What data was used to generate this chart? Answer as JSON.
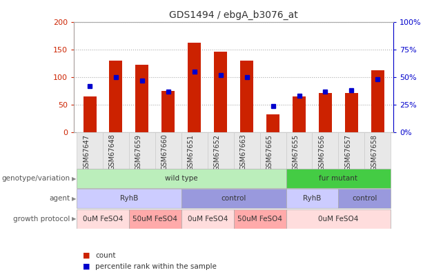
{
  "title": "GDS1494 / ebgA_b3076_at",
  "samples": [
    "GSM67647",
    "GSM67648",
    "GSM67659",
    "GSM67660",
    "GSM67651",
    "GSM67652",
    "GSM67663",
    "GSM67665",
    "GSM67655",
    "GSM67656",
    "GSM67657",
    "GSM67658"
  ],
  "counts": [
    65,
    130,
    123,
    75,
    163,
    146,
    130,
    32,
    65,
    71,
    72,
    113
  ],
  "percentiles": [
    42,
    50,
    47,
    37,
    55,
    52,
    50,
    24,
    33,
    37,
    38,
    48
  ],
  "bar_color": "#cc2200",
  "dot_color": "#0000cc",
  "left_ylim": [
    0,
    200
  ],
  "right_ylim": [
    0,
    100
  ],
  "left_yticks": [
    0,
    50,
    100,
    150,
    200
  ],
  "right_yticks": [
    0,
    25,
    50,
    75,
    100
  ],
  "right_yticklabels": [
    "0%",
    "25%",
    "50%",
    "75%",
    "100%"
  ],
  "genotype_groups": [
    {
      "label": "wild type",
      "start": 0,
      "end": 8,
      "color": "#bbeebb"
    },
    {
      "label": "fur mutant",
      "start": 8,
      "end": 12,
      "color": "#44cc44"
    }
  ],
  "agent_groups": [
    {
      "label": "RyhB",
      "start": 0,
      "end": 4,
      "color": "#ccccff"
    },
    {
      "label": "control",
      "start": 4,
      "end": 8,
      "color": "#9999dd"
    },
    {
      "label": "RyhB",
      "start": 8,
      "end": 10,
      "color": "#ccccff"
    },
    {
      "label": "control",
      "start": 10,
      "end": 12,
      "color": "#9999dd"
    }
  ],
  "growth_groups": [
    {
      "label": "0uM FeSO4",
      "start": 0,
      "end": 2,
      "color": "#ffdddd"
    },
    {
      "label": "50uM FeSO4",
      "start": 2,
      "end": 4,
      "color": "#ffaaaa"
    },
    {
      "label": "0uM FeSO4",
      "start": 4,
      "end": 6,
      "color": "#ffdddd"
    },
    {
      "label": "50uM FeSO4",
      "start": 6,
      "end": 8,
      "color": "#ffaaaa"
    },
    {
      "label": "0uM FeSO4",
      "start": 8,
      "end": 12,
      "color": "#ffdddd"
    }
  ],
  "row_labels": [
    "genotype/variation",
    "agent",
    "growth protocol"
  ],
  "bg_color": "#ffffff",
  "grid_color": "#aaaaaa",
  "tick_label_color_left": "#cc2200",
  "tick_label_color_right": "#0000cc",
  "legend_items": [
    {
      "label": "count",
      "color": "#cc2200"
    },
    {
      "label": "percentile rank within the sample",
      "color": "#0000cc"
    }
  ],
  "xlim_left": -0.6,
  "xlim_right": 11.6
}
